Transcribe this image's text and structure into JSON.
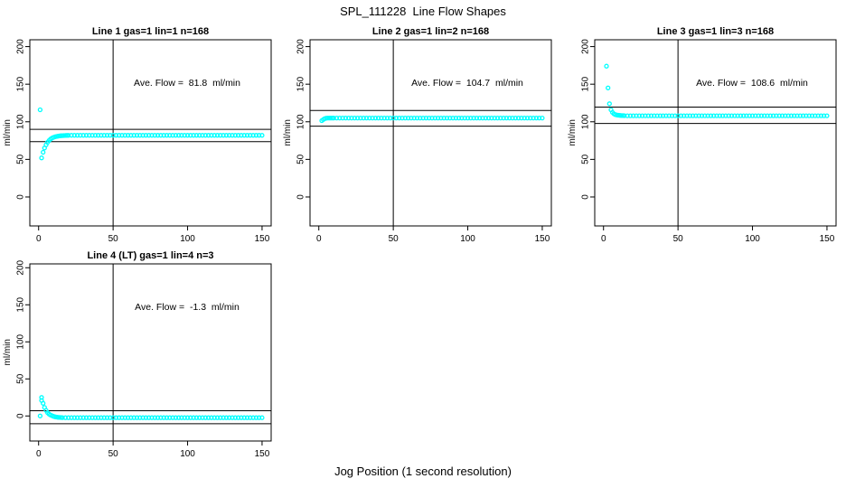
{
  "page": {
    "title": "SPL_111228  Line Flow Shapes",
    "xlabel": "Jog Position (1 second resolution)"
  },
  "colors": {
    "points": "#00ffff",
    "axis": "#000000",
    "reference_lines": "#000000",
    "background": "#ffffff",
    "text": "#000000"
  },
  "chart_data": [
    {
      "type": "scatter",
      "title": "Line 1 gas=1 lin=1 n=168",
      "annotation": "Ave. Flow =  81.8  ml/min",
      "ave_flow": 81.8,
      "ave_flow_unit": "ml/min",
      "ylabel": "ml/min",
      "x_ticks": [
        0,
        50,
        100,
        150
      ],
      "y_ticks": [
        0,
        50,
        100,
        150,
        200
      ],
      "xlim": [
        -5.9,
        156.1
      ],
      "ylim": [
        -38.5,
        209.1
      ],
      "vline_x": 50,
      "hlines": [
        90.0,
        73.6
      ],
      "grid": false,
      "points": [
        [
          1,
          116
        ],
        [
          2,
          52
        ],
        [
          3,
          59.5
        ],
        [
          4,
          65.1
        ],
        [
          5,
          69.4
        ],
        [
          6,
          72.7
        ],
        [
          7,
          75.1
        ],
        [
          8,
          77.0
        ],
        [
          9,
          78.3
        ],
        [
          10,
          79.3
        ],
        [
          11,
          80.0
        ],
        [
          12,
          80.5
        ],
        [
          13,
          80.9
        ],
        [
          14,
          81.2
        ],
        [
          15,
          81.4
        ],
        [
          16,
          81.6
        ],
        [
          17,
          81.7
        ],
        [
          18,
          81.8
        ],
        [
          19,
          81.9
        ],
        [
          20,
          81.9
        ]
      ],
      "flat": {
        "x_from": 22,
        "x_to": 150,
        "x_step": 2,
        "y": 82.0
      }
    },
    {
      "type": "scatter",
      "title": "Line 2 gas=1 lin=2 n=168",
      "annotation": "Ave. Flow =  104.7  ml/min",
      "ave_flow": 104.7,
      "ave_flow_unit": "ml/min",
      "ylabel": "ml/min",
      "x_ticks": [
        0,
        50,
        100,
        150
      ],
      "y_ticks": [
        0,
        50,
        100,
        150,
        200
      ],
      "xlim": [
        -5.9,
        156.1
      ],
      "ylim": [
        -38.5,
        209.1
      ],
      "vline_x": 50,
      "hlines": [
        115.0,
        94.2
      ],
      "grid": false,
      "points": [
        [
          2,
          101.5
        ],
        [
          3,
          103.0
        ],
        [
          4,
          104.2
        ],
        [
          5,
          104.8
        ],
        [
          6,
          105.0
        ],
        [
          7,
          105.0
        ],
        [
          8,
          105.0
        ],
        [
          9,
          105.0
        ],
        [
          10,
          105.0
        ]
      ],
      "flat": {
        "x_from": 12,
        "x_to": 150,
        "x_step": 2,
        "y": 105.0
      }
    },
    {
      "type": "scatter",
      "title": "Line 3 gas=1 lin=3 n=168",
      "annotation": "Ave. Flow =  108.6  ml/min",
      "ave_flow": 108.6,
      "ave_flow_unit": "ml/min",
      "ylabel": "ml/min",
      "x_ticks": [
        0,
        50,
        100,
        150
      ],
      "y_ticks": [
        0,
        50,
        100,
        150,
        200
      ],
      "xlim": [
        -5.9,
        156.1
      ],
      "ylim": [
        -38.5,
        209.1
      ],
      "vline_x": 50,
      "hlines": [
        119.5,
        97.7
      ],
      "grid": false,
      "points": [
        [
          2,
          174
        ],
        [
          3,
          145
        ],
        [
          4,
          124
        ],
        [
          5,
          116
        ],
        [
          6,
          112.5
        ],
        [
          7,
          110.5
        ],
        [
          8,
          109.5
        ],
        [
          9,
          109.0
        ],
        [
          10,
          108.7
        ],
        [
          11,
          108.5
        ],
        [
          12,
          108.3
        ],
        [
          13,
          108.2
        ],
        [
          14,
          108.1
        ]
      ],
      "flat": {
        "x_from": 16,
        "x_to": 150,
        "x_step": 2,
        "y": 108.0
      }
    },
    {
      "type": "scatter",
      "title": "Line 4 (LT) gas=1 lin=4 n=3",
      "annotation": "Ave. Flow =  -1.3  ml/min",
      "ave_flow": -1.3,
      "ave_flow_unit": "ml/min",
      "ylabel": "ml/min",
      "x_ticks": [
        0,
        50,
        100,
        150
      ],
      "y_ticks": [
        0,
        50,
        100,
        150,
        200
      ],
      "xlim": [
        -5.9,
        156.1
      ],
      "ylim": [
        -33.8,
        205.2
      ],
      "vline_x": 50,
      "hlines": [
        7.0,
        -10.5
      ],
      "grid": false,
      "points": [
        [
          1,
          0
        ],
        [
          2,
          25
        ],
        [
          2,
          21
        ],
        [
          3,
          17
        ],
        [
          4,
          11.5
        ],
        [
          5,
          7.5
        ],
        [
          6,
          4.5
        ],
        [
          7,
          2.5
        ],
        [
          8,
          1.2
        ],
        [
          9,
          0.3
        ],
        [
          10,
          -0.5
        ],
        [
          11,
          -1.1
        ],
        [
          12,
          -1.5
        ],
        [
          13,
          -1.8
        ],
        [
          14,
          -2.0
        ],
        [
          15,
          -2.1
        ],
        [
          16,
          -2.2
        ],
        [
          18,
          -2.3
        ]
      ],
      "flat": {
        "x_from": 20,
        "x_to": 150,
        "x_step": 2,
        "y": -2.3
      }
    }
  ]
}
